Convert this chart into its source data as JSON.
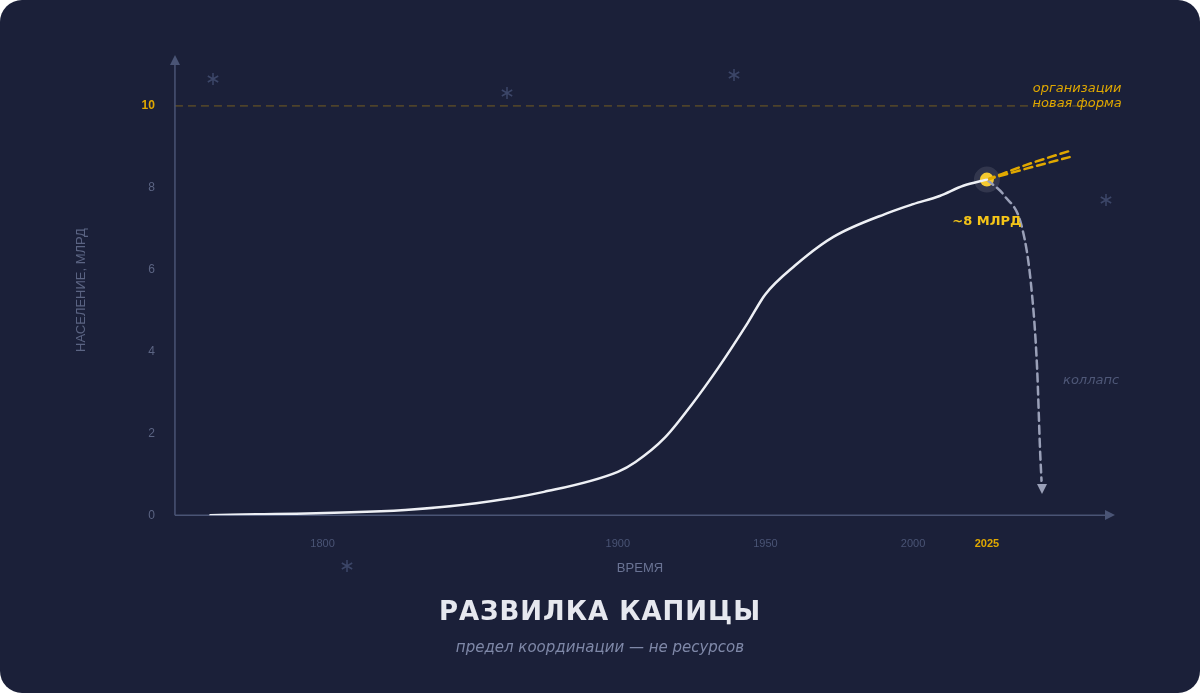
{
  "chart_data": {
    "type": "line",
    "title": "РАЗВИЛКА КАПИЦЫ",
    "subtitle": "предел координации — не ресурсов",
    "xlabel": "ВРЕМЯ",
    "ylabel": "НАСЕЛЕНИЕ, МЛРД",
    "xlim": [
      1750,
      2065
    ],
    "xticks": [
      1800,
      1900,
      1950,
      2000,
      2025
    ],
    "ylim": [
      0,
      11
    ],
    "yticks": [
      0,
      2,
      4,
      6,
      8,
      10
    ],
    "grid": false,
    "legend": false,
    "marker": "none",
    "series": [
      {
        "color": "#eef0f5",
        "x": [
          1762,
          1828,
          1852,
          1875,
          1900,
          1906,
          1916,
          1925,
          1934,
          1944,
          1950,
          1960,
          1973,
          1992,
          2000,
          2009,
          2017,
          2025
        ],
        "values": [
          0,
          0.13,
          0.29,
          0.57,
          1.06,
          1.3,
          1.9,
          2.7,
          3.6,
          4.7,
          5.4,
          6.1,
          6.8,
          7.4,
          7.6,
          7.8,
          8.05,
          8.2
        ]
      },
      {
        "color": "#e0a800",
        "line_style": "dashed",
        "x": [
          2025,
          2040,
          2053
        ],
        "values": [
          8.2,
          8.6,
          8.9
        ]
      },
      {
        "color": "#e0a800",
        "line_style": "dashed",
        "x": [
          2025,
          2040,
          2053
        ],
        "values": [
          8.2,
          8.5,
          8.75
        ]
      },
      {
        "color": "#9aa0b8",
        "line_style": "dashed",
        "x": [
          2025,
          2031,
          2037,
          2040,
          2042,
          2043,
          2043.5
        ],
        "values": [
          8.2,
          7.8,
          7.0,
          5.6,
          3.6,
          1.6,
          0.84
        ]
      },
      {
        "type": "scatter",
        "marker": "circle",
        "color": "#f5c518",
        "x": [
          2025
        ],
        "values": [
          8.2
        ]
      }
    ],
    "ref_lines": [
      {
        "axis": "y",
        "value": 10,
        "color": "#e0a800",
        "line_style": "dashed"
      }
    ],
    "annotations": [
      {
        "text": "~8 МЛРД",
        "x": 2025,
        "y": 8.2
      },
      "организации новая форма",
      "коллапс"
    ]
  }
}
